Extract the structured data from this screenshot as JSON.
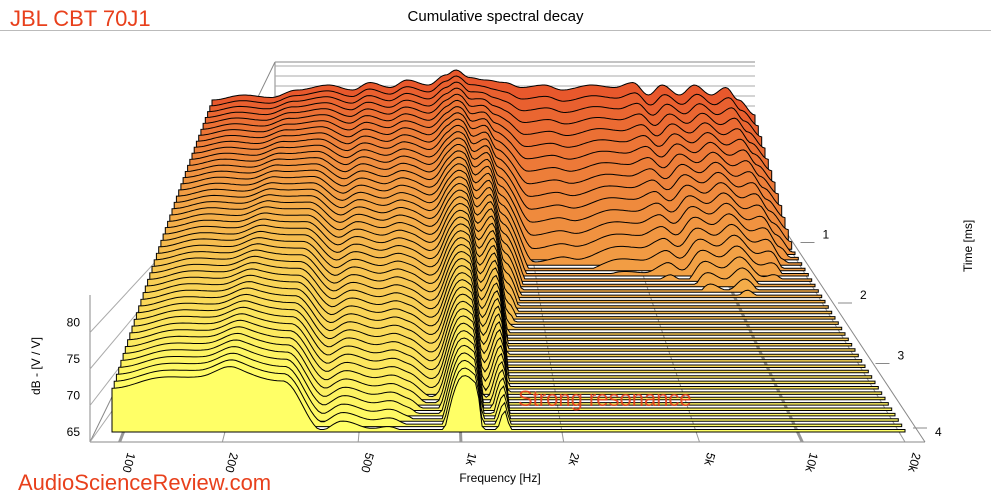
{
  "header": {
    "brand": "JBL CBT 70J1",
    "title": "Cumulative spectral decay"
  },
  "watermark": "AudioScienceReview.com",
  "annotation": "Strong resonance",
  "chart_data": {
    "type": "area",
    "title": "Cumulative spectral decay",
    "xlabel": "Frequency [Hz]",
    "ylabel": "dB - [V / V]",
    "zlabel": "Time [ms]",
    "x_scale": "log",
    "xlim": [
      95,
      20000
    ],
    "ylim": [
      65,
      85
    ],
    "tlim": [
      0,
      4
    ],
    "x_ticks": [
      {
        "v": 100,
        "label": "100"
      },
      {
        "v": 200,
        "label": "200"
      },
      {
        "v": 500,
        "label": "500"
      },
      {
        "v": 1000,
        "label": "1k"
      },
      {
        "v": 2000,
        "label": "2k"
      },
      {
        "v": 5000,
        "label": "5k"
      },
      {
        "v": 10000,
        "label": "10k"
      },
      {
        "v": 20000,
        "label": "20k"
      }
    ],
    "y_ticks": [
      65,
      70,
      75,
      80
    ],
    "t_ticks": [
      1,
      2,
      3,
      4
    ],
    "slices": 46,
    "initial_response": [
      [
        95,
        83
      ],
      [
        130,
        84
      ],
      [
        170,
        83.5
      ],
      [
        220,
        85
      ],
      [
        300,
        86
      ],
      [
        380,
        85
      ],
      [
        450,
        86.5
      ],
      [
        550,
        85.5
      ],
      [
        650,
        87
      ],
      [
        800,
        86
      ],
      [
        950,
        88
      ],
      [
        1050,
        89
      ],
      [
        1200,
        87.5
      ],
      [
        1400,
        87
      ],
      [
        1700,
        86.5
      ],
      [
        2000,
        85.5
      ],
      [
        2500,
        86
      ],
      [
        3000,
        85
      ],
      [
        4000,
        86
      ],
      [
        5000,
        85.5
      ],
      [
        6000,
        86.5
      ],
      [
        7000,
        84
      ],
      [
        8000,
        86
      ],
      [
        9500,
        84
      ],
      [
        11000,
        86
      ],
      [
        13000,
        84
      ],
      [
        15000,
        85.5
      ],
      [
        17000,
        83
      ],
      [
        20000,
        80
      ]
    ],
    "decay_rate_db_per_ms": [
      [
        95,
        3
      ],
      [
        200,
        2.7
      ],
      [
        300,
        3.5
      ],
      [
        400,
        5
      ],
      [
        550,
        5
      ],
      [
        700,
        5.5
      ],
      [
        850,
        6
      ],
      [
        1000,
        4
      ],
      [
        1100,
        4.2
      ],
      [
        1200,
        6.5
      ],
      [
        1350,
        4.8
      ],
      [
        1500,
        9
      ],
      [
        2000,
        16
      ],
      [
        5000,
        14
      ],
      [
        10000,
        11
      ],
      [
        20000,
        14
      ]
    ],
    "colors": {
      "front": "#ffff66",
      "back": "#e8582c",
      "grid": "#888888"
    }
  }
}
